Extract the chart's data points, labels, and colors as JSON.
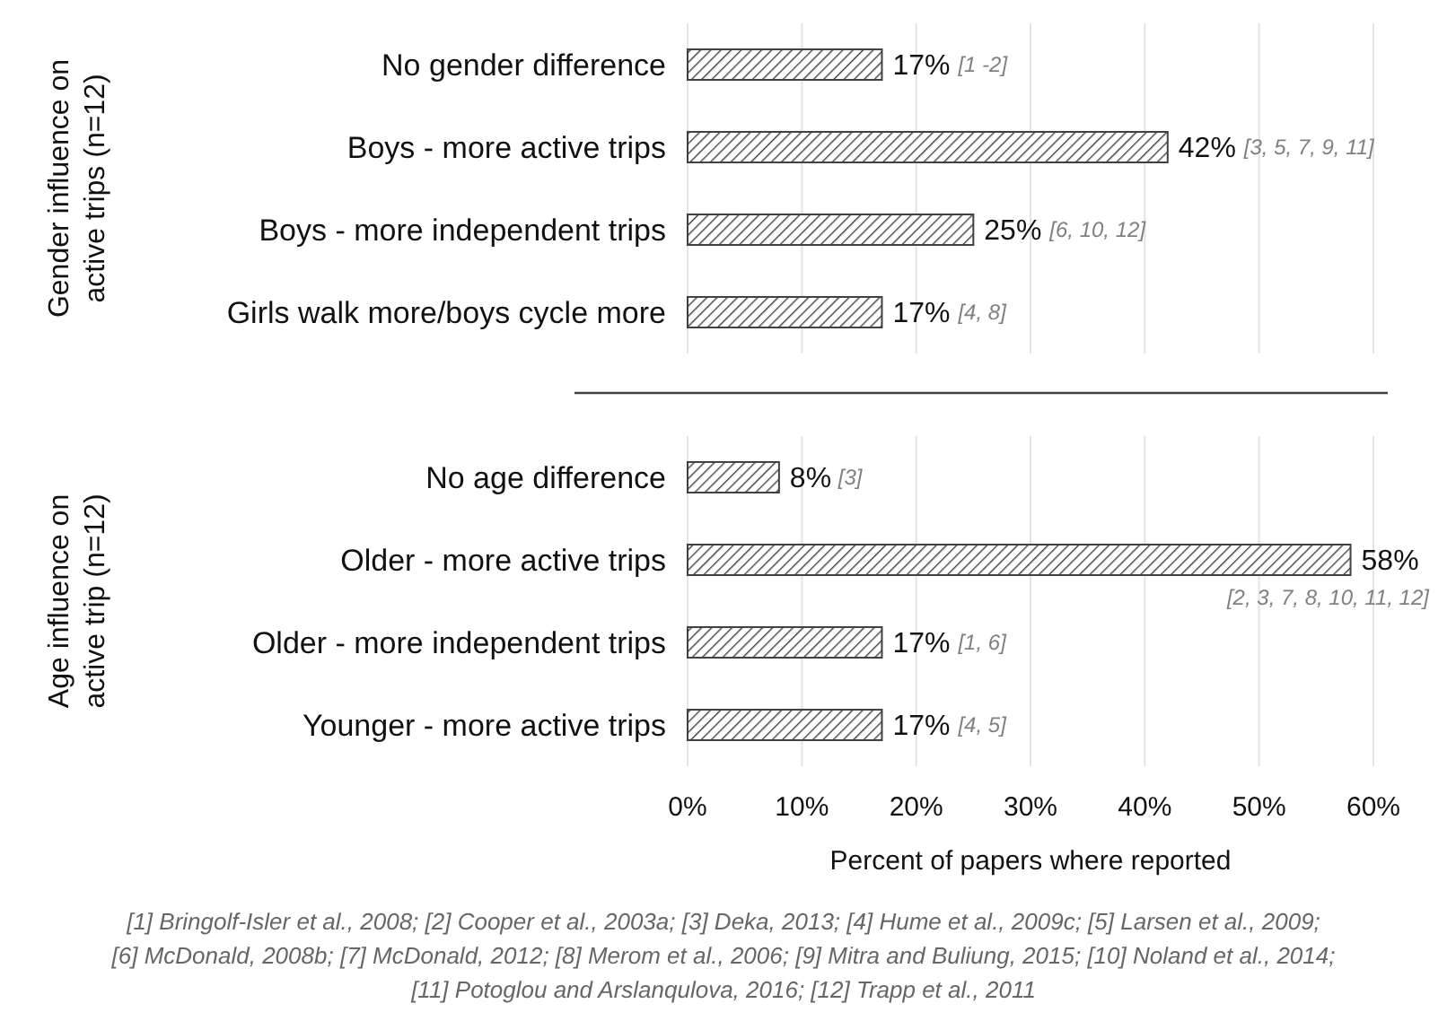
{
  "chart_data": [
    {
      "type": "bar",
      "orientation": "horizontal",
      "ylabel": "Gender influence on active trips (n=12)",
      "categories": [
        "No gender difference",
        "Boys - more active trips",
        "Boys - more independent trips",
        "Girls walk more/boys cycle  more"
      ],
      "values": [
        17,
        42,
        25,
        17
      ],
      "value_labels": [
        "17%",
        "42%",
        "25%",
        "17%"
      ],
      "color": "#404040",
      "xlim": [
        0,
        60
      ],
      "xticks": [
        {
          "value": 0,
          "label": null
        },
        {
          "value": 10,
          "label": null
        },
        {
          "value": 20,
          "label": null
        },
        {
          "value": 30,
          "label": null
        },
        {
          "value": 40,
          "label": null
        },
        {
          "value": 50,
          "label": null
        },
        {
          "value": 60,
          "label": null
        }
      ],
      "grid": "x",
      "tick_labels": "y",
      "annotations": [
        "[1 -2]",
        "[3, 5, 7, 9, 11]",
        "[6, 10, 12]",
        "[4, 8]"
      ]
    },
    {
      "type": "bar",
      "orientation": "horizontal",
      "ylabel": "Age influence on active trip (n=12)",
      "xlabel": "Percent of papers where reported",
      "categories": [
        "No age difference",
        "Older - more active trips",
        "Older - more independent trips",
        "Younger - more active trips"
      ],
      "values": [
        8,
        58,
        17,
        17
      ],
      "value_labels": [
        "8%",
        "58%",
        "17%",
        "17%"
      ],
      "color": "#404040",
      "xlim": [
        0,
        60
      ],
      "xticks": [
        {
          "value": 0,
          "label": "0%"
        },
        {
          "value": 10,
          "label": "10%"
        },
        {
          "value": 20,
          "label": "20%"
        },
        {
          "value": 30,
          "label": "30%"
        },
        {
          "value": 40,
          "label": "40%"
        },
        {
          "value": 50,
          "label": "50%"
        },
        {
          "value": 60,
          "label": "60%"
        }
      ],
      "grid": "x",
      "annotations": [
        "[3]",
        "[2, 3, 7, 8, 10, 11, 12]",
        "[1, 6]",
        "[4, 5]",
        "[1] Bringolf-Isler et al., 2008; [2] Cooper et al., 2003a; [3] Deka, 2013; [4] Hume et al., 2009c; [5] Larsen et al., 2009;",
        "[6] McDonald, 2008b; [7] McDonald, 2012; [8] Merom et al., 2006; [9] Mitra and Buliung, 2015; [10] Noland et al., 2014;",
        "[11] Potoglou and Arslanqulova, 2016; [12] Trapp et al., 2011"
      ]
    }
  ]
}
